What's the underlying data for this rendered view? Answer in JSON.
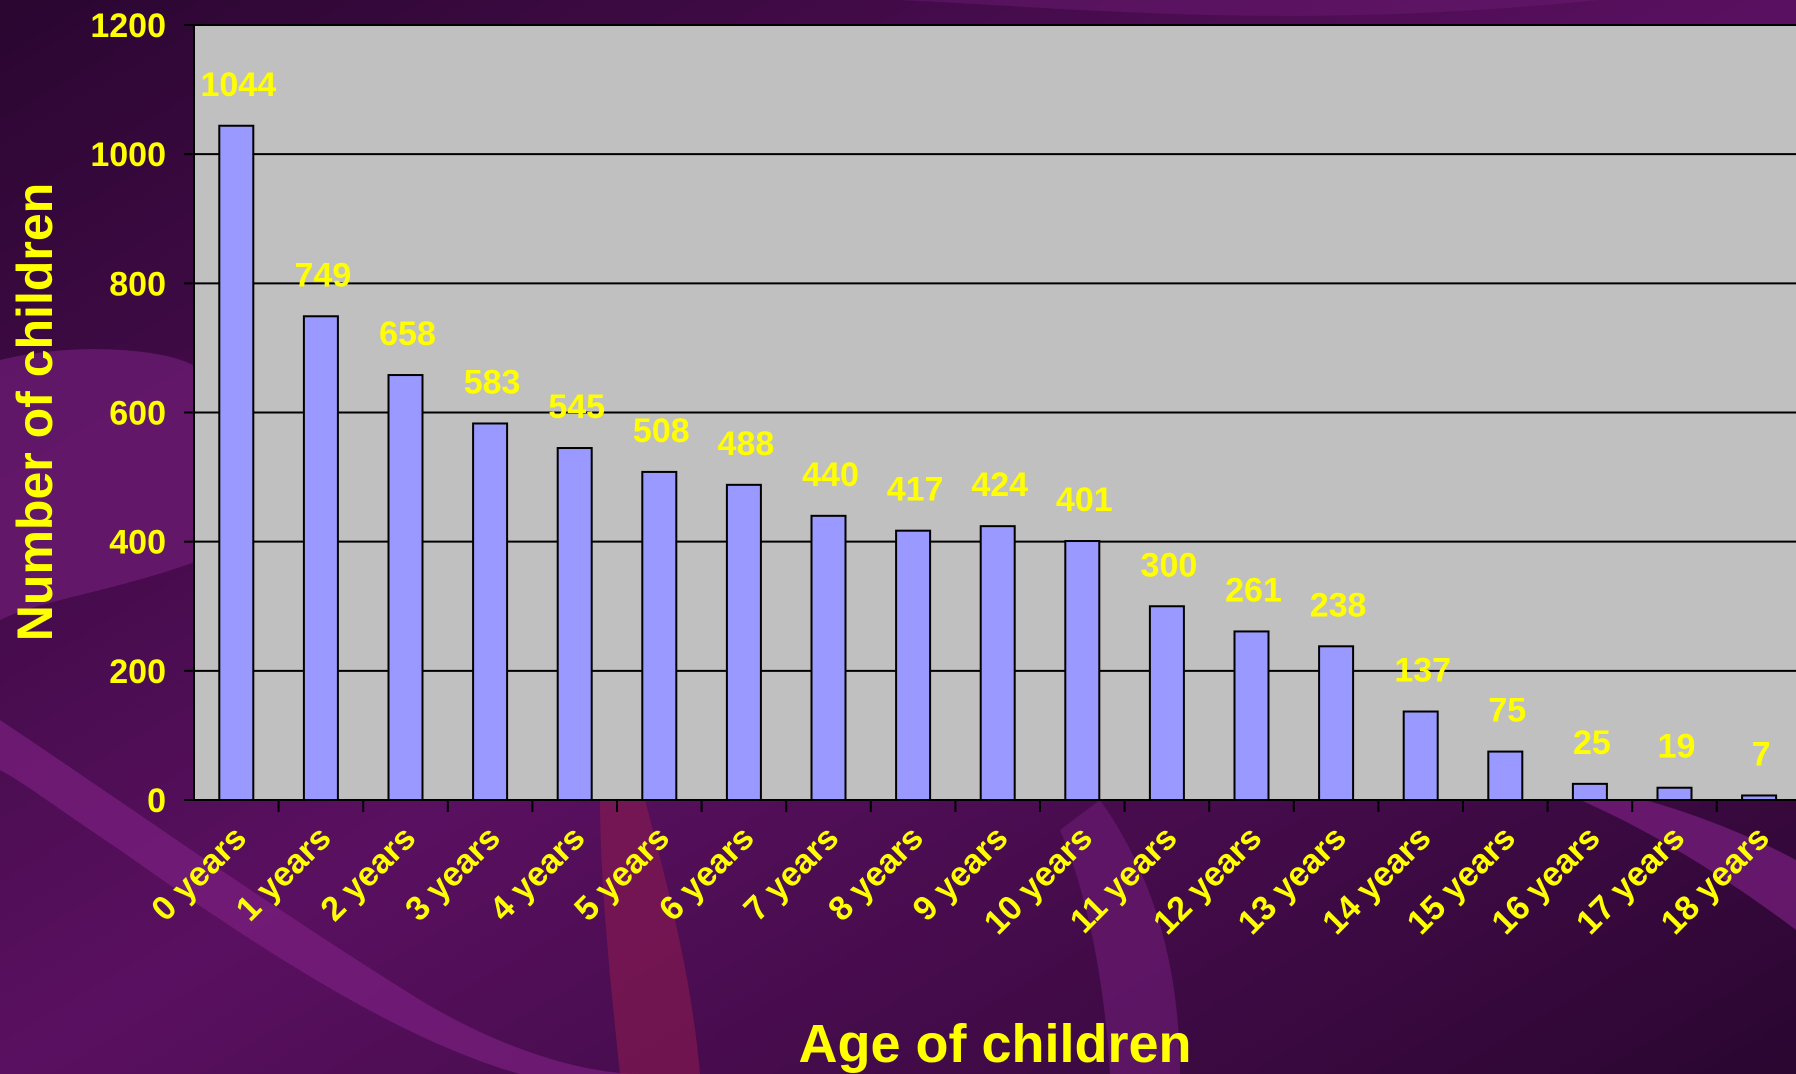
{
  "colors": {
    "background": "#3a0a3e",
    "plot_area": "#c0c0c0",
    "bar_fill": "#9999ff",
    "bar_stroke": "#000000",
    "text": "#ffff00",
    "gridline": "#000000"
  },
  "chart_data": {
    "type": "bar",
    "title": "",
    "xlabel": "Age of children",
    "ylabel": "Number of children",
    "ylim": [
      0,
      1200
    ],
    "yticks": [
      0,
      200,
      400,
      600,
      800,
      1000,
      1200
    ],
    "grid": true,
    "legend": "none",
    "categories": [
      "0 years",
      "1 years",
      "2 years",
      "3 years",
      "4 years",
      "5 years",
      "6 years",
      "7 years",
      "8 years",
      "9 years",
      "10 years",
      "11 years",
      "12 years",
      "13 years",
      "14 years",
      "15 years",
      "16 years",
      "17 years",
      "18 years"
    ],
    "values": [
      1044,
      749,
      658,
      583,
      545,
      508,
      488,
      440,
      417,
      424,
      401,
      300,
      261,
      238,
      137,
      75,
      25,
      19,
      7
    ],
    "data_labels": [
      "1044",
      "749",
      "658",
      "583",
      "545",
      "508",
      "488",
      "440",
      "417",
      "424",
      "401",
      "300",
      "261",
      "238",
      "137",
      "75",
      "25",
      "19",
      "7"
    ]
  }
}
